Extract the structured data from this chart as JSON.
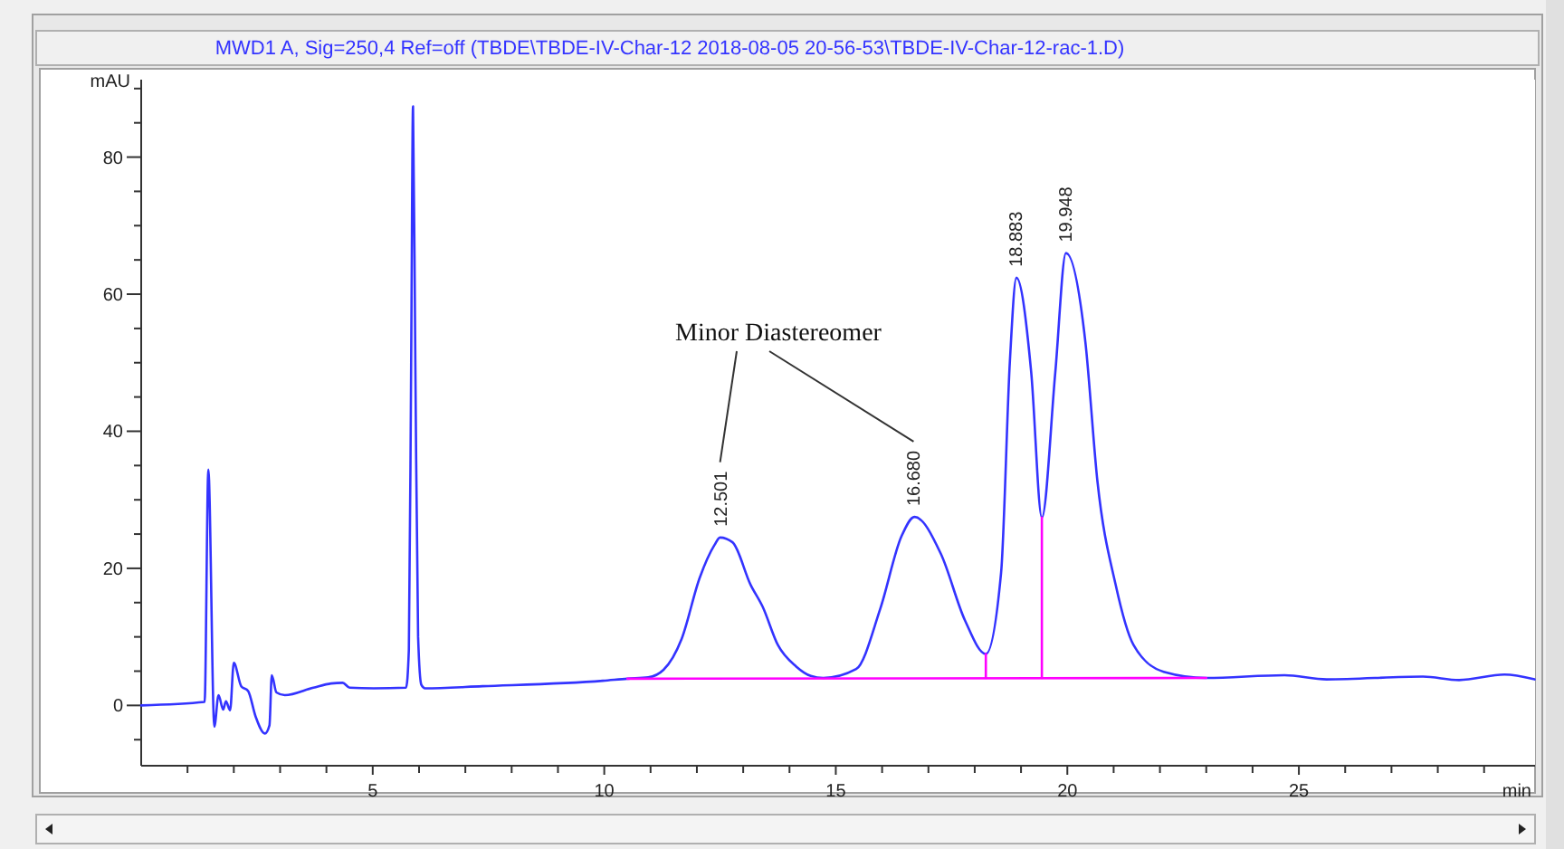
{
  "chart_data": {
    "type": "line",
    "title": "MWD1 A, Sig=250,4 Ref=off (TBDE\\TBDE-IV-Char-12 2018-08-05 20-56-53\\TBDE-IV-Char-12-rac-1.D)",
    "xlabel": "min",
    "ylabel": "mAU",
    "xlim": [
      0,
      30.1
    ],
    "ylim": [
      -8.8,
      91.3
    ],
    "xticks": [
      {
        "value": 1,
        "label": null
      },
      {
        "value": 2,
        "label": null
      },
      {
        "value": 3,
        "label": null
      },
      {
        "value": 4,
        "label": null
      },
      5,
      {
        "value": 6,
        "label": null
      },
      {
        "value": 7,
        "label": null
      },
      {
        "value": 8,
        "label": null
      },
      {
        "value": 9,
        "label": null
      },
      10,
      {
        "value": 11,
        "label": null
      },
      {
        "value": 12,
        "label": null
      },
      {
        "value": 13,
        "label": null
      },
      {
        "value": 14,
        "label": null
      },
      15,
      {
        "value": 16,
        "label": null
      },
      {
        "value": 17,
        "label": null
      },
      {
        "value": 18,
        "label": null
      },
      {
        "value": 19,
        "label": null
      },
      20,
      {
        "value": 21,
        "label": null
      },
      {
        "value": 22,
        "label": null
      },
      {
        "value": 23,
        "label": null
      },
      {
        "value": 24,
        "label": null
      },
      25,
      {
        "value": 26,
        "label": null
      },
      {
        "value": 27,
        "label": null
      },
      {
        "value": 28,
        "label": null
      },
      {
        "value": 29,
        "label": null
      }
    ],
    "yticks": [
      {
        "value": -5,
        "label": null
      },
      0,
      {
        "value": 5,
        "label": null
      },
      {
        "value": 10,
        "label": null
      },
      {
        "value": 15,
        "label": null
      },
      20,
      {
        "value": 25,
        "label": null
      },
      {
        "value": 30,
        "label": null
      },
      {
        "value": 35,
        "label": null
      },
      40,
      {
        "value": 45,
        "label": null
      },
      {
        "value": 50,
        "label": null
      },
      {
        "value": 55,
        "label": null
      },
      60,
      {
        "value": 65,
        "label": null
      },
      {
        "value": 70,
        "label": null
      },
      {
        "value": 75,
        "label": null
      },
      80,
      {
        "value": 85,
        "label": null
      },
      {
        "value": 90,
        "label": null
      }
    ],
    "grid": false,
    "series": [
      {
        "color": "#3333ff",
        "x": [
          0,
          1.37,
          1.45,
          1.58,
          1.67,
          1.77,
          1.83,
          1.92,
          2.0,
          2.16,
          2.31,
          2.47,
          2.67,
          2.77,
          2.82,
          2.92,
          3.1,
          3.72,
          4.1,
          4.35,
          4.5,
          5.02,
          5.72,
          5.78,
          5.83,
          5.87,
          5.92,
          5.98,
          6.05,
          6.13,
          7.37,
          9.97,
          10.5,
          10.95,
          11.28,
          11.67,
          12.06,
          12.38,
          12.5,
          12.77,
          13.16,
          13.42,
          13.75,
          14.14,
          14.46,
          14.73,
          15.44,
          15.96,
          16.42,
          16.7,
          17.27,
          17.79,
          18.24,
          18.57,
          18.76,
          18.9,
          19.22,
          19.45,
          19.74,
          19.97,
          20.39,
          20.65,
          21.04,
          21.43,
          22.08,
          23.0,
          24.69,
          25.6,
          27.68,
          28.46,
          29.44,
          30.09
        ],
        "values": [
          0,
          0.5,
          34.4,
          -3.1,
          1.5,
          -0.6,
          0.6,
          -0.7,
          6.2,
          2.8,
          2.1,
          -1.6,
          -4.1,
          -2.9,
          4.4,
          1.9,
          1.5,
          2.6,
          3.2,
          3.3,
          2.6,
          2.5,
          2.6,
          8.1,
          50,
          87.4,
          50,
          10,
          3,
          2.5,
          2.8,
          3.6,
          3.9,
          4.1,
          5.2,
          9.7,
          18.6,
          23.4,
          24.5,
          23.8,
          17.6,
          14.4,
          8.8,
          5.7,
          4.3,
          4.0,
          5.3,
          14.1,
          24.7,
          27.5,
          22.1,
          12.4,
          7.5,
          19.4,
          50.3,
          62.4,
          48.6,
          27.4,
          48.6,
          66,
          53,
          32.7,
          17.7,
          8.8,
          4.9,
          4.0,
          4.4,
          3.8,
          4.2,
          3.7,
          4.5,
          3.8
        ]
      },
      {
        "color": "#ff00ff",
        "x": [
          10.5,
          23.0
        ],
        "values": [
          3.9,
          4.0
        ]
      },
      {
        "color": "#ff00ff",
        "x": [
          18.24,
          18.24
        ],
        "values": [
          4.0,
          7.5
        ]
      },
      {
        "color": "#ff00ff",
        "x": [
          19.45,
          19.45
        ],
        "values": [
          4.0,
          27.4
        ]
      }
    ],
    "annotations": [
      {
        "text": "12.501",
        "x": 12.501,
        "y": 24.5
      },
      {
        "text": "16.680",
        "x": 16.68,
        "y": 27.5
      },
      {
        "text": "18.883",
        "x": 18.883,
        "y": 62.4
      },
      {
        "text": "19.948",
        "x": 19.948,
        "y": 66
      },
      "Minor Diastereomer"
    ]
  }
}
